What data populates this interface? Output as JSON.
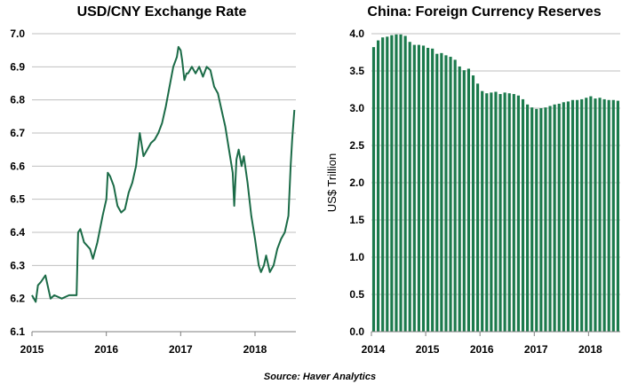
{
  "source_note": "Source: Haver Analytics",
  "colors": {
    "series": "#1b6b47",
    "bar": "#1b7a4c",
    "grid": "#bfbfbf",
    "axis": "#7f7f7f"
  },
  "chart_data": [
    {
      "type": "line",
      "title": "USD/CNY Exchange Rate",
      "xlabel": "",
      "ylabel": "",
      "xlim": [
        2015.0,
        2018.55
      ],
      "ylim": [
        6.1,
        7.0
      ],
      "y_ticks": [
        "6.1",
        "6.2",
        "6.3",
        "6.4",
        "6.5",
        "6.6",
        "6.7",
        "6.8",
        "6.9",
        "7.0"
      ],
      "x_ticks": [
        "2015",
        "2016",
        "2017",
        "2018"
      ],
      "grid": true,
      "x": [
        2015.0,
        2015.05,
        2015.08,
        2015.12,
        2015.18,
        2015.25,
        2015.3,
        2015.4,
        2015.5,
        2015.58,
        2015.6,
        2015.62,
        2015.65,
        2015.7,
        2015.78,
        2015.82,
        2015.88,
        2015.95,
        2016.0,
        2016.02,
        2016.05,
        2016.1,
        2016.15,
        2016.2,
        2016.25,
        2016.3,
        2016.35,
        2016.4,
        2016.45,
        2016.5,
        2016.55,
        2016.6,
        2016.65,
        2016.7,
        2016.75,
        2016.8,
        2016.85,
        2016.9,
        2016.95,
        2016.97,
        2017.0,
        2017.02,
        2017.05,
        2017.08,
        2017.1,
        2017.15,
        2017.2,
        2017.25,
        2017.3,
        2017.35,
        2017.4,
        2017.45,
        2017.5,
        2017.55,
        2017.6,
        2017.65,
        2017.7,
        2017.72,
        2017.75,
        2017.78,
        2017.82,
        2017.85,
        2017.9,
        2017.95,
        2018.0,
        2018.05,
        2018.08,
        2018.12,
        2018.15,
        2018.2,
        2018.25,
        2018.3,
        2018.35,
        2018.4,
        2018.45,
        2018.48,
        2018.5,
        2018.53
      ],
      "values": [
        6.21,
        6.19,
        6.24,
        6.25,
        6.27,
        6.2,
        6.21,
        6.2,
        6.21,
        6.21,
        6.21,
        6.4,
        6.41,
        6.37,
        6.35,
        6.32,
        6.37,
        6.45,
        6.5,
        6.58,
        6.57,
        6.54,
        6.48,
        6.46,
        6.47,
        6.52,
        6.55,
        6.6,
        6.7,
        6.63,
        6.65,
        6.67,
        6.68,
        6.7,
        6.73,
        6.78,
        6.84,
        6.9,
        6.93,
        6.96,
        6.95,
        6.92,
        6.86,
        6.88,
        6.88,
        6.9,
        6.88,
        6.9,
        6.87,
        6.9,
        6.89,
        6.84,
        6.82,
        6.77,
        6.72,
        6.65,
        6.58,
        6.48,
        6.62,
        6.65,
        6.6,
        6.63,
        6.55,
        6.45,
        6.38,
        6.3,
        6.28,
        6.3,
        6.33,
        6.28,
        6.3,
        6.35,
        6.38,
        6.4,
        6.45,
        6.6,
        6.68,
        6.77
      ]
    },
    {
      "type": "bar",
      "title": "China: Foreign Currency Reserves",
      "xlabel": "",
      "ylabel": "US$ Trillion",
      "ylim": [
        0.0,
        4.0
      ],
      "y_ticks": [
        "0.0",
        "0.5",
        "1.0",
        "1.5",
        "2.0",
        "2.5",
        "3.0",
        "3.5",
        "4.0"
      ],
      "x_ticks": [
        "2014",
        "2015",
        "2016",
        "2017",
        "2018"
      ],
      "grid": true,
      "start": {
        "year": 2014,
        "month": 1
      },
      "values": [
        3.82,
        3.91,
        3.95,
        3.96,
        3.98,
        3.99,
        3.99,
        3.97,
        3.89,
        3.85,
        3.85,
        3.84,
        3.81,
        3.8,
        3.73,
        3.74,
        3.71,
        3.69,
        3.65,
        3.56,
        3.51,
        3.53,
        3.44,
        3.33,
        3.23,
        3.2,
        3.21,
        3.22,
        3.19,
        3.21,
        3.2,
        3.19,
        3.17,
        3.12,
        3.05,
        3.01,
        2.99,
        3.0,
        3.01,
        3.03,
        3.05,
        3.06,
        3.08,
        3.09,
        3.11,
        3.11,
        3.12,
        3.14,
        3.16,
        3.13,
        3.14,
        3.12,
        3.11,
        3.11,
        3.1
      ]
    }
  ]
}
